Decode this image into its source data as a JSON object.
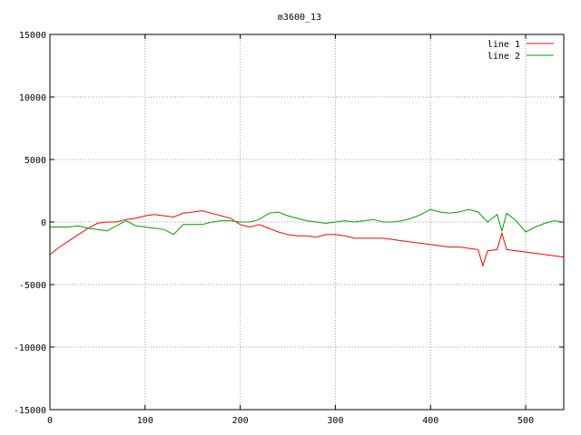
{
  "chart_data": {
    "type": "line",
    "title": "m3600_13",
    "xlabel": "",
    "ylabel": "",
    "xlim": [
      0,
      540
    ],
    "ylim": [
      -15000,
      15000
    ],
    "x_ticks": [
      0,
      100,
      200,
      300,
      400,
      500
    ],
    "y_ticks": [
      -15000,
      -10000,
      -5000,
      0,
      5000,
      10000,
      15000
    ],
    "grid": true,
    "legend_position": "top-right",
    "series": [
      {
        "name": "line 1",
        "color": "#ff0000",
        "x": [
          0,
          10,
          20,
          30,
          40,
          50,
          60,
          70,
          80,
          90,
          100,
          110,
          120,
          130,
          140,
          150,
          160,
          170,
          180,
          190,
          200,
          210,
          220,
          230,
          240,
          250,
          260,
          270,
          280,
          290,
          300,
          310,
          320,
          330,
          340,
          350,
          360,
          370,
          380,
          390,
          400,
          410,
          420,
          430,
          440,
          450,
          455,
          460,
          470,
          475,
          480,
          490,
          500,
          510,
          520,
          530,
          540
        ],
        "y": [
          -2600,
          -2000,
          -1500,
          -1000,
          -500,
          -100,
          0,
          0,
          200,
          300,
          500,
          600,
          500,
          400,
          700,
          800,
          900,
          700,
          500,
          300,
          -200,
          -400,
          -200,
          -500,
          -800,
          -1000,
          -1100,
          -1100,
          -1200,
          -1000,
          -1000,
          -1100,
          -1300,
          -1300,
          -1300,
          -1300,
          -1400,
          -1500,
          -1600,
          -1700,
          -1800,
          -1900,
          -2000,
          -2000,
          -2100,
          -2200,
          -3500,
          -2300,
          -2200,
          -900,
          -2200,
          -2300,
          -2400,
          -2500,
          -2600,
          -2700,
          -2800
        ]
      },
      {
        "name": "line 2",
        "color": "#00a000",
        "x": [
          0,
          10,
          20,
          30,
          40,
          50,
          60,
          70,
          80,
          90,
          100,
          110,
          120,
          130,
          140,
          150,
          160,
          170,
          180,
          190,
          200,
          210,
          220,
          230,
          240,
          250,
          260,
          270,
          280,
          290,
          300,
          310,
          320,
          330,
          340,
          350,
          360,
          370,
          380,
          390,
          400,
          410,
          420,
          430,
          440,
          450,
          460,
          470,
          475,
          480,
          490,
          500,
          510,
          520,
          530,
          540
        ],
        "y": [
          -400,
          -400,
          -400,
          -300,
          -500,
          -600,
          -700,
          -300,
          100,
          -300,
          -400,
          -500,
          -600,
          -1000,
          -200,
          -200,
          -200,
          0,
          100,
          100,
          0,
          0,
          200,
          700,
          800,
          500,
          300,
          100,
          0,
          -100,
          0,
          100,
          0,
          100,
          200,
          0,
          0,
          100,
          300,
          600,
          1000,
          800,
          700,
          800,
          1000,
          800,
          0,
          600,
          -700,
          700,
          100,
          -800,
          -400,
          -100,
          100,
          0
        ]
      }
    ]
  }
}
